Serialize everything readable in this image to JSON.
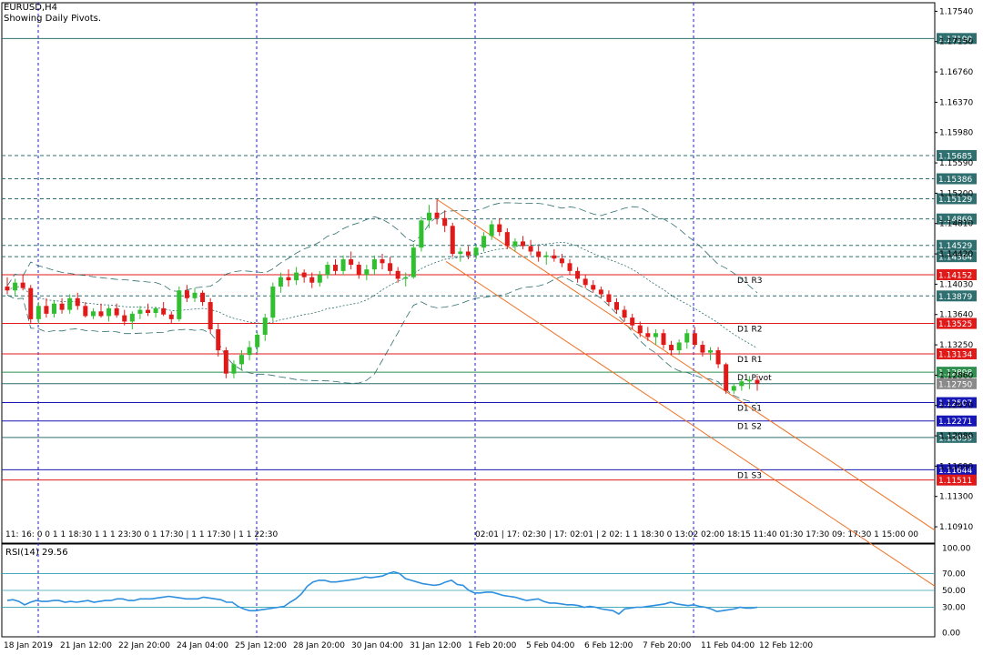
{
  "window": {
    "symbol_title": "EURUSD,H4",
    "indicator_note": "Showing Daily Pivots."
  },
  "colors": {
    "bull": "#2fbf2f",
    "bear": "#e01919",
    "pivot_line": "#2f8f4f",
    "support_line": "#1717b5",
    "resistance_line": "#e01919",
    "fib_level": "#2f6f6f",
    "channel": "#f07020",
    "bollinger": "#2f6f6f",
    "rsi_line": "#2f8fdf",
    "grid_vertical": "#1a1aff"
  },
  "chart_data": [
    {
      "type": "candlestick",
      "title": "EURUSD,H4",
      "ylim": [
        1.107,
        1.1765
      ],
      "y_ticks": [
        "1.17540",
        "1.17150",
        "1.16760",
        "1.16370",
        "1.15980",
        "1.15590",
        "1.15200",
        "1.14810",
        "1.14420",
        "1.14030",
        "1.13640",
        "1.13250",
        "1.12860",
        "1.12470",
        "1.12080",
        "1.11690",
        "1.11300",
        "1.10910"
      ],
      "x_ticks": [
        "18 Jan 2019",
        "21 Jan 12:00",
        "22 Jan 20:00",
        "24 Jan 04:00",
        "25 Jan 12:00",
        "28 Jan 20:00",
        "30 Jan 04:00",
        "31 Jan 12:00",
        "1 Feb 20:00",
        "5 Feb 04:00",
        "6 Feb 12:00",
        "7 Feb 20:00",
        "11 Feb 04:00",
        "12 Feb 12:00"
      ],
      "price_levels": [
        {
          "value": 1.1719,
          "label": "1.17190",
          "style": "solid",
          "color_key": "fib_level",
          "tag_bg": "#2f6f6f"
        },
        {
          "value": 1.15685,
          "label": "1.15685",
          "style": "dashed",
          "color_key": "fib_level",
          "tag_bg": "#2f6f6f"
        },
        {
          "value": 1.15386,
          "label": "1.15386",
          "style": "dashed",
          "color_key": "fib_level",
          "tag_bg": "#2f6f6f"
        },
        {
          "value": 1.15129,
          "label": "1.15129",
          "style": "dashed",
          "color_key": "fib_level",
          "tag_bg": "#2f6f6f"
        },
        {
          "value": 1.14869,
          "label": "1.14869",
          "style": "dashed",
          "color_key": "fib_level",
          "tag_bg": "#2f6f6f"
        },
        {
          "value": 1.14529,
          "label": "1.14529",
          "style": "dashed",
          "color_key": "fib_level",
          "tag_bg": "#2f6f6f"
        },
        {
          "value": 1.14384,
          "label": "1.14384",
          "style": "dashed",
          "color_key": "fib_level",
          "tag_bg": "#2f6f6f"
        },
        {
          "value": 1.14152,
          "label": "1.14152",
          "style": "solid",
          "color_key": "resistance_line",
          "tag_bg": "#e01919",
          "pivot_label": "D1 R3"
        },
        {
          "value": 1.13879,
          "label": "1.13879",
          "style": "dashed",
          "color_key": "fib_level",
          "tag_bg": "#2f6f6f"
        },
        {
          "value": 1.13525,
          "label": "1.13525",
          "style": "solid",
          "color_key": "resistance_line",
          "tag_bg": "#e01919",
          "pivot_label": "D1 R2"
        },
        {
          "value": 1.13134,
          "label": "1.13134",
          "style": "solid",
          "color_key": "resistance_line",
          "tag_bg": "#e01919",
          "pivot_label": "D1 R1"
        },
        {
          "value": 1.12898,
          "label": "1.12898",
          "style": "solid",
          "color_key": "pivot_line",
          "tag_bg": "#2f8f4f",
          "pivot_label": "D1 Pivot"
        },
        {
          "value": 1.1275,
          "label": "1.12750",
          "style": "solid",
          "color_key": "fib_level",
          "tag_bg": "#8a8a8a"
        },
        {
          "value": 1.12507,
          "label": "1.12507",
          "style": "solid",
          "color_key": "support_line",
          "tag_bg": "#1717b5",
          "pivot_label": "D1 S1"
        },
        {
          "value": 1.12271,
          "label": "1.12271",
          "style": "solid",
          "color_key": "support_line",
          "tag_bg": "#1717b5",
          "pivot_label": "D1 S2"
        },
        {
          "value": 1.12059,
          "label": "1.12059",
          "style": "solid",
          "color_key": "fib_level",
          "tag_bg": "#2f6f6f"
        },
        {
          "value": 1.11644,
          "label": "1.11644",
          "style": "solid",
          "color_key": "support_line",
          "tag_bg": "#1717b5",
          "pivot_label": "D1 S3"
        },
        {
          "value": 1.11511,
          "label": "1.11511",
          "style": "solid",
          "color_key": "resistance_line",
          "tag_bg": "#e01919"
        }
      ],
      "candles": [
        {
          "o": 1.14,
          "h": 1.1412,
          "l": 1.139,
          "c": 1.1395
        },
        {
          "o": 1.1395,
          "h": 1.141,
          "l": 1.1388,
          "c": 1.1405
        },
        {
          "o": 1.1405,
          "h": 1.1415,
          "l": 1.1395,
          "c": 1.1398
        },
        {
          "o": 1.1398,
          "h": 1.1402,
          "l": 1.1352,
          "c": 1.1358
        },
        {
          "o": 1.1358,
          "h": 1.138,
          "l": 1.1352,
          "c": 1.1375
        },
        {
          "o": 1.1375,
          "h": 1.1385,
          "l": 1.136,
          "c": 1.1365
        },
        {
          "o": 1.1365,
          "h": 1.1382,
          "l": 1.136,
          "c": 1.1378
        },
        {
          "o": 1.1378,
          "h": 1.1385,
          "l": 1.1365,
          "c": 1.137
        },
        {
          "o": 1.137,
          "h": 1.139,
          "l": 1.1365,
          "c": 1.1385
        },
        {
          "o": 1.1385,
          "h": 1.1392,
          "l": 1.137,
          "c": 1.1375
        },
        {
          "o": 1.1375,
          "h": 1.138,
          "l": 1.136,
          "c": 1.1362
        },
        {
          "o": 1.1362,
          "h": 1.1372,
          "l": 1.1358,
          "c": 1.1368
        },
        {
          "o": 1.1368,
          "h": 1.1378,
          "l": 1.136,
          "c": 1.1362
        },
        {
          "o": 1.1362,
          "h": 1.1375,
          "l": 1.1355,
          "c": 1.1372
        },
        {
          "o": 1.1372,
          "h": 1.1378,
          "l": 1.136,
          "c": 1.1363
        },
        {
          "o": 1.1363,
          "h": 1.137,
          "l": 1.135,
          "c": 1.1355
        },
        {
          "o": 1.1355,
          "h": 1.1368,
          "l": 1.1345,
          "c": 1.1365
        },
        {
          "o": 1.1365,
          "h": 1.1375,
          "l": 1.1358,
          "c": 1.137
        },
        {
          "o": 1.137,
          "h": 1.1378,
          "l": 1.1362,
          "c": 1.1366
        },
        {
          "o": 1.1366,
          "h": 1.1374,
          "l": 1.136,
          "c": 1.1372
        },
        {
          "o": 1.1372,
          "h": 1.138,
          "l": 1.1362,
          "c": 1.1364
        },
        {
          "o": 1.1364,
          "h": 1.1368,
          "l": 1.1352,
          "c": 1.1358
        },
        {
          "o": 1.1358,
          "h": 1.14,
          "l": 1.1355,
          "c": 1.1395
        },
        {
          "o": 1.1395,
          "h": 1.1402,
          "l": 1.138,
          "c": 1.1385
        },
        {
          "o": 1.1385,
          "h": 1.1398,
          "l": 1.138,
          "c": 1.1392
        },
        {
          "o": 1.1392,
          "h": 1.1395,
          "l": 1.1375,
          "c": 1.138
        },
        {
          "o": 1.138,
          "h": 1.1385,
          "l": 1.134,
          "c": 1.1345
        },
        {
          "o": 1.1345,
          "h": 1.1352,
          "l": 1.131,
          "c": 1.1318
        },
        {
          "o": 1.1318,
          "h": 1.1322,
          "l": 1.1282,
          "c": 1.1288
        },
        {
          "o": 1.1288,
          "h": 1.1305,
          "l": 1.1282,
          "c": 1.13
        },
        {
          "o": 1.13,
          "h": 1.1318,
          "l": 1.1292,
          "c": 1.1312
        },
        {
          "o": 1.1312,
          "h": 1.133,
          "l": 1.1305,
          "c": 1.1322
        },
        {
          "o": 1.1322,
          "h": 1.1342,
          "l": 1.1315,
          "c": 1.1338
        },
        {
          "o": 1.1338,
          "h": 1.1365,
          "l": 1.133,
          "c": 1.136
        },
        {
          "o": 1.136,
          "h": 1.1405,
          "l": 1.1355,
          "c": 1.14
        },
        {
          "o": 1.14,
          "h": 1.1418,
          "l": 1.1392,
          "c": 1.1412
        },
        {
          "o": 1.1412,
          "h": 1.1422,
          "l": 1.14,
          "c": 1.1408
        },
        {
          "o": 1.1408,
          "h": 1.1425,
          "l": 1.1402,
          "c": 1.1418
        },
        {
          "o": 1.1418,
          "h": 1.1422,
          "l": 1.1405,
          "c": 1.1412
        },
        {
          "o": 1.1412,
          "h": 1.1418,
          "l": 1.1398,
          "c": 1.1405
        },
        {
          "o": 1.1405,
          "h": 1.142,
          "l": 1.14,
          "c": 1.1415
        },
        {
          "o": 1.1415,
          "h": 1.1432,
          "l": 1.141,
          "c": 1.1428
        },
        {
          "o": 1.1428,
          "h": 1.1435,
          "l": 1.1415,
          "c": 1.142
        },
        {
          "o": 1.142,
          "h": 1.144,
          "l": 1.1415,
          "c": 1.1435
        },
        {
          "o": 1.1435,
          "h": 1.1445,
          "l": 1.1422,
          "c": 1.1428
        },
        {
          "o": 1.1428,
          "h": 1.1432,
          "l": 1.141,
          "c": 1.1415
        },
        {
          "o": 1.1415,
          "h": 1.1428,
          "l": 1.1408,
          "c": 1.1422
        },
        {
          "o": 1.1422,
          "h": 1.144,
          "l": 1.1415,
          "c": 1.1435
        },
        {
          "o": 1.1435,
          "h": 1.1442,
          "l": 1.1422,
          "c": 1.143
        },
        {
          "o": 1.143,
          "h": 1.1438,
          "l": 1.1415,
          "c": 1.142
        },
        {
          "o": 1.142,
          "h": 1.1425,
          "l": 1.1405,
          "c": 1.141
        },
        {
          "o": 1.141,
          "h": 1.1418,
          "l": 1.14,
          "c": 1.1412
        },
        {
          "o": 1.1412,
          "h": 1.1455,
          "l": 1.141,
          "c": 1.145
        },
        {
          "o": 1.145,
          "h": 1.149,
          "l": 1.1445,
          "c": 1.1485
        },
        {
          "o": 1.1485,
          "h": 1.1505,
          "l": 1.1475,
          "c": 1.1495
        },
        {
          "o": 1.1495,
          "h": 1.1512,
          "l": 1.148,
          "c": 1.1488
        },
        {
          "o": 1.1488,
          "h": 1.1498,
          "l": 1.147,
          "c": 1.1478
        },
        {
          "o": 1.1478,
          "h": 1.1482,
          "l": 1.1438,
          "c": 1.1442
        },
        {
          "o": 1.1442,
          "h": 1.145,
          "l": 1.1432,
          "c": 1.1445
        },
        {
          "o": 1.1445,
          "h": 1.1452,
          "l": 1.1435,
          "c": 1.144
        },
        {
          "o": 1.144,
          "h": 1.1455,
          "l": 1.1435,
          "c": 1.145
        },
        {
          "o": 1.145,
          "h": 1.147,
          "l": 1.1445,
          "c": 1.1465
        },
        {
          "o": 1.1465,
          "h": 1.1485,
          "l": 1.146,
          "c": 1.148
        },
        {
          "o": 1.148,
          "h": 1.1488,
          "l": 1.1465,
          "c": 1.147
        },
        {
          "o": 1.147,
          "h": 1.1475,
          "l": 1.1448,
          "c": 1.1452
        },
        {
          "o": 1.1452,
          "h": 1.1462,
          "l": 1.1445,
          "c": 1.1458
        },
        {
          "o": 1.1458,
          "h": 1.1465,
          "l": 1.1448,
          "c": 1.1452
        },
        {
          "o": 1.1452,
          "h": 1.146,
          "l": 1.144,
          "c": 1.1445
        },
        {
          "o": 1.1445,
          "h": 1.1452,
          "l": 1.1432,
          "c": 1.1438
        },
        {
          "o": 1.1438,
          "h": 1.1445,
          "l": 1.1428,
          "c": 1.144
        },
        {
          "o": 1.144,
          "h": 1.1448,
          "l": 1.1432,
          "c": 1.1436
        },
        {
          "o": 1.1436,
          "h": 1.1442,
          "l": 1.1425,
          "c": 1.143
        },
        {
          "o": 1.143,
          "h": 1.1435,
          "l": 1.1415,
          "c": 1.142
        },
        {
          "o": 1.142,
          "h": 1.1425,
          "l": 1.1405,
          "c": 1.141
        },
        {
          "o": 1.141,
          "h": 1.1415,
          "l": 1.1398,
          "c": 1.1402
        },
        {
          "o": 1.1402,
          "h": 1.1408,
          "l": 1.1392,
          "c": 1.1396
        },
        {
          "o": 1.1396,
          "h": 1.14,
          "l": 1.1385,
          "c": 1.139
        },
        {
          "o": 1.139,
          "h": 1.1395,
          "l": 1.1375,
          "c": 1.138
        },
        {
          "o": 1.138,
          "h": 1.1385,
          "l": 1.1365,
          "c": 1.137
        },
        {
          "o": 1.137,
          "h": 1.1375,
          "l": 1.1355,
          "c": 1.136
        },
        {
          "o": 1.136,
          "h": 1.1365,
          "l": 1.1345,
          "c": 1.135
        },
        {
          "o": 1.135,
          "h": 1.1355,
          "l": 1.1335,
          "c": 1.134
        },
        {
          "o": 1.134,
          "h": 1.1348,
          "l": 1.133,
          "c": 1.1335
        },
        {
          "o": 1.1335,
          "h": 1.1345,
          "l": 1.1325,
          "c": 1.134
        },
        {
          "o": 1.134,
          "h": 1.1345,
          "l": 1.132,
          "c": 1.1325
        },
        {
          "o": 1.1325,
          "h": 1.133,
          "l": 1.1312,
          "c": 1.1318
        },
        {
          "o": 1.1318,
          "h": 1.1332,
          "l": 1.1312,
          "c": 1.1328
        },
        {
          "o": 1.1328,
          "h": 1.1345,
          "l": 1.132,
          "c": 1.134
        },
        {
          "o": 1.134,
          "h": 1.1348,
          "l": 1.1322,
          "c": 1.1325
        },
        {
          "o": 1.1325,
          "h": 1.133,
          "l": 1.131,
          "c": 1.1315
        },
        {
          "o": 1.1315,
          "h": 1.1322,
          "l": 1.1305,
          "c": 1.1318
        },
        {
          "o": 1.1318,
          "h": 1.1322,
          "l": 1.1295,
          "c": 1.13
        },
        {
          "o": 1.13,
          "h": 1.1302,
          "l": 1.1262,
          "c": 1.1266
        },
        {
          "o": 1.1266,
          "h": 1.1275,
          "l": 1.1262,
          "c": 1.1272
        },
        {
          "o": 1.1272,
          "h": 1.1282,
          "l": 1.1266,
          "c": 1.1278
        },
        {
          "o": 1.1278,
          "h": 1.1285,
          "l": 1.1268,
          "c": 1.128
        },
        {
          "o": 1.128,
          "h": 1.1285,
          "l": 1.1266,
          "c": 1.1275
        }
      ]
    },
    {
      "type": "line",
      "title": "RSI(14) 29.56",
      "ylim": [
        -5,
        105
      ],
      "y_ticks": [
        "100.00",
        "70.00",
        "50.00",
        "30.00",
        "0.00"
      ],
      "levels": [
        70,
        50,
        30
      ],
      "series": [
        {
          "name": "RSI(14)",
          "values": [
            38,
            39,
            37,
            33,
            36,
            38,
            37,
            37,
            38,
            38,
            36,
            37,
            36,
            37,
            38,
            36,
            37,
            38,
            38,
            40,
            40,
            38,
            38,
            40,
            40,
            40,
            41,
            42,
            43,
            42,
            41,
            40,
            40,
            40,
            42,
            41,
            40,
            39,
            36,
            36,
            31,
            28,
            26,
            26,
            27,
            28,
            29,
            30,
            31,
            36,
            40,
            46,
            55,
            60,
            62,
            62,
            60,
            60,
            61,
            62,
            63,
            64,
            66,
            65,
            66,
            67,
            70,
            72,
            70,
            64,
            62,
            60,
            58,
            57,
            56,
            57,
            60,
            62,
            57,
            56,
            50,
            47,
            47,
            48,
            48,
            46,
            44,
            43,
            42,
            40,
            38,
            39,
            40,
            37,
            35,
            35,
            34,
            33,
            33,
            32,
            30,
            31,
            30,
            28,
            27,
            26,
            22,
            28,
            29,
            30,
            30,
            31,
            32,
            33,
            34,
            36,
            34,
            33,
            32,
            33,
            31,
            30,
            28,
            25,
            26,
            27,
            28,
            30,
            29,
            29,
            30
          ]
        }
      ]
    }
  ],
  "left_time_row": "11: 16: 0 0 1 1 18:30 1 1 1 23:30 0 1 17:30 | 1 1 17:30 | 1 1 22:30",
  "right_time_row": "02:01 | 17: 02:30 | 17: 02:01 | 2 02: 1 1 18:30 0 13:02 02:00 18:15 11:40 01:30 17:30 09: 17:30 1 15:00 00"
}
